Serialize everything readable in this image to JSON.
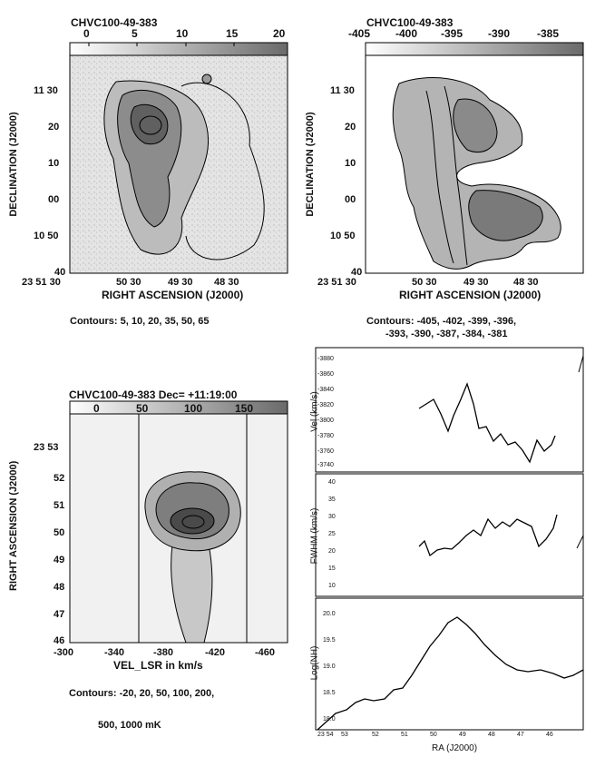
{
  "panel_tl": {
    "title": "CHVC100-49-383",
    "colorbar_ticks": [
      "0",
      "5",
      "10",
      "15",
      "20"
    ],
    "yticks": [
      "11 30",
      "20",
      "10",
      "00",
      "10 50",
      "40"
    ],
    "xticks": [
      "23 51 30",
      "50 30",
      "49 30",
      "48 30"
    ],
    "ylabel": "DECLINATION (J2000)",
    "xlabel": "RIGHT ASCENSION (J2000)",
    "contours": "Contours: 5, 10, 20, 35, 50, 65"
  },
  "panel_tr": {
    "title": "CHVC100-49-383",
    "colorbar_ticks": [
      "-405",
      "-400",
      "-395",
      "-390",
      "-385"
    ],
    "yticks": [
      "11 30",
      "20",
      "10",
      "00",
      "10 50",
      "40"
    ],
    "xticks": [
      "23 51 30",
      "50 30",
      "49 30",
      "48 30"
    ],
    "ylabel": "DECLINATION (J2000)",
    "xlabel": "RIGHT ASCENSION (J2000)",
    "contours_line1": "Contours: -405, -402, -399, -396,",
    "contours_line2": "-393, -390, -387, -384, -381"
  },
  "panel_bl": {
    "title": "CHVC100-49-383   Dec= +11:19:00",
    "colorbar_ticks": [
      "0",
      "50",
      "100",
      "150"
    ],
    "yticks": [
      "23 53",
      "52",
      "51",
      "50",
      "49",
      "48",
      "47",
      "46"
    ],
    "xticks": [
      "-300",
      "-340",
      "-380",
      "-420",
      "-460"
    ],
    "ylabel": "RIGHT ASCENSION (J2000)",
    "xlabel": "VEL_LSR in km/s",
    "contours_line1": "Contours: -20, 20, 50, 100, 200,",
    "contours_line2": "500, 1000 mK"
  },
  "panel_br": {
    "ylabel_top": "Vel (km/s)",
    "ylabel_mid": "FWHM (km/s)",
    "ylabel_bot": "Log(NH)",
    "xlabel": "RA (J2000)",
    "yticks_top": [
      "-3880",
      "-3860",
      "-3840",
      "-3820",
      "-3800",
      "-3780",
      "-3760",
      "-3740"
    ],
    "yticks_mid": [
      "40",
      "35",
      "30",
      "25",
      "20",
      "15",
      "10"
    ],
    "yticks_bot": [
      "20.0",
      "19.5",
      "19.0",
      "18.5",
      "18.0"
    ],
    "xticks": [
      "23 54",
      "53",
      "52",
      "51",
      "50",
      "49",
      "48",
      "47",
      "46"
    ]
  }
}
